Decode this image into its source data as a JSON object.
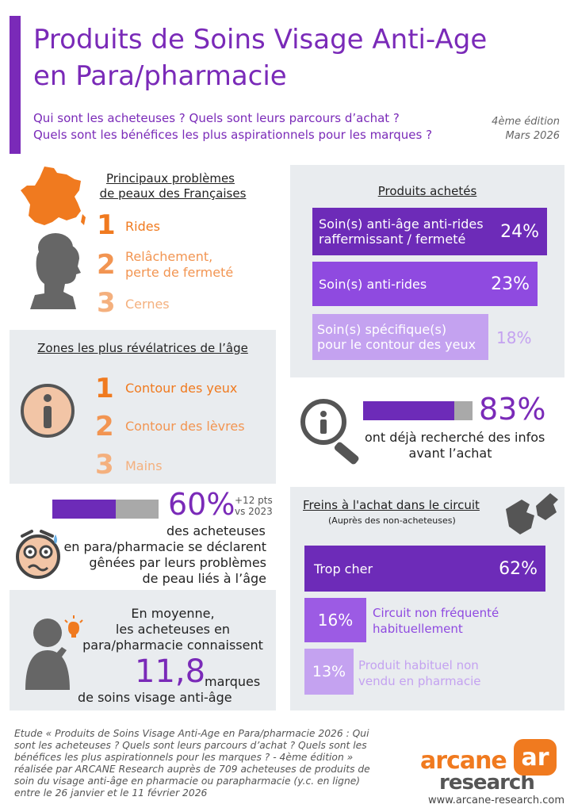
{
  "header": {
    "title_line1": "Produits de Soins Visage Anti-Age",
    "title_line2": "en Para/pharmacie",
    "subtitle_line1": "Qui sont les acheteuses ? Quels sont leurs parcours d’achat ?",
    "subtitle_line2": "Quels sont les bénéfices les plus aspirationnels pour les marques ?",
    "edition": "4ème édition",
    "date": "Mars 2026"
  },
  "problems": {
    "title_line1": "Principaux problèmes",
    "title_line2": "de peaux des Françaises",
    "items": [
      {
        "num": "1",
        "label": "Rides"
      },
      {
        "num": "2",
        "label_line1": "Relâchement,",
        "label_line2": "perte de fermeté"
      },
      {
        "num": "3",
        "label": "Cernes"
      }
    ]
  },
  "products": {
    "title": "Produits achetés",
    "items": [
      {
        "line1": "Soin(s) anti-âge anti-rides",
        "line2": "raffermissant / fermeté",
        "pct": "24%",
        "value": 24
      },
      {
        "line1": "Soin(s) anti-rides",
        "line2": "",
        "pct": "23%",
        "value": 23
      },
      {
        "line1": "Soin(s) spécifique(s)",
        "line2": "pour le contour des yeux",
        "pct": "18%",
        "value": 18
      }
    ]
  },
  "zones": {
    "title": "Zones les plus révélatrices de l’âge",
    "items": [
      {
        "num": "1",
        "label": "Contour des yeux"
      },
      {
        "num": "2",
        "label": "Contour des lèvres"
      },
      {
        "num": "3",
        "label": "Mains"
      }
    ]
  },
  "research": {
    "pct": "83%",
    "value": 83,
    "line1": "ont déjà recherché des infos",
    "line2": "avant l’achat"
  },
  "embarrassed": {
    "pct": "60%",
    "value": 60,
    "delta_line1": "+12 pts",
    "delta_line2": "vs 2023",
    "line1": "des acheteuses",
    "line2": "en para/pharmacie se déclarent",
    "line3": "gênées par leurs problèmes",
    "line4": "de peau liés à l’âge"
  },
  "brakes": {
    "title": "Freins à l'achat dans le circuit",
    "subtitle": "(Auprès des non-acheteuses)",
    "items": [
      {
        "line1": "Trop cher",
        "line2": "",
        "pct": "62%",
        "value": 62
      },
      {
        "line1": "Circuit non fréquenté",
        "line2": "habituellement",
        "pct": "16%",
        "value": 16
      },
      {
        "line1": "Produit habituel non",
        "line2": "vendu en pharmacie",
        "pct": "13%",
        "value": 13
      }
    ]
  },
  "brands": {
    "line1": "En moyenne,",
    "line2": "les acheteuses en",
    "line3": "para/pharmacie connaissent",
    "number": "11,8",
    "unit": "marques",
    "line4": "de soins visage anti-âge"
  },
  "footer": {
    "line1": "Etude « Produits de Soins Visage Anti-Age en Para/pharmacie 2026 : Qui",
    "line2": "sont les acheteuses ? Quels sont leurs parcours d’achat ? Quels sont les",
    "line3": "bénéfices les plus aspirationnels pour les marques ? - 4ème édition »",
    "line4": "réalisée par ARCANE Research auprès de 709 acheteuses de produits de",
    "line5": "soin du visage anti-âge en pharmacie ou parapharmacie (y.c. en ligne)",
    "line6": "entre le 26 janvier et le 11 février 2026",
    "logo_word1": "arcane",
    "logo_word2": "research",
    "logo_mark": "ar",
    "url": "www.arcane-research.com"
  },
  "colors": {
    "purple_dark": "#6d2bb8",
    "purple_mid": "#8f4ae0",
    "purple_light": "#c4a2f0",
    "orange": "#f07a1f",
    "grey_panel": "#e9ecef"
  }
}
